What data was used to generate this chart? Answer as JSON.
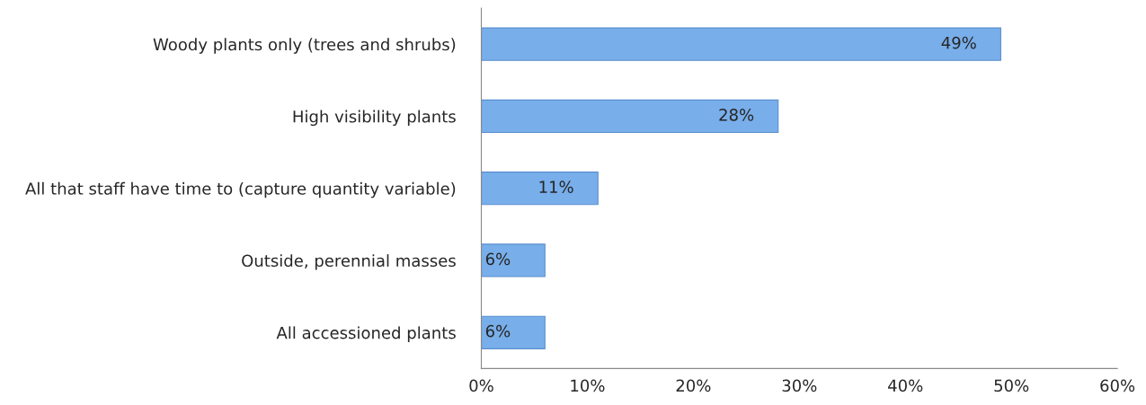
{
  "chart_data": {
    "type": "bar",
    "orientation": "horizontal",
    "categories": [
      "Woody plants only (trees and shrubs)",
      "High visibility plants",
      "All that staff have time to (capture quantity variable)",
      "Outside, perennial masses",
      "All accessioned plants"
    ],
    "values": [
      49,
      28,
      11,
      6,
      6
    ],
    "value_labels": [
      "49%",
      "28%",
      "11%",
      "6%",
      "6%"
    ],
    "color": "#78aeea",
    "xlim": [
      0,
      60
    ],
    "xticks": [
      {
        "value": 0,
        "label": "0%"
      },
      {
        "value": 10,
        "label": "10%"
      },
      {
        "value": 20,
        "label": "20%"
      },
      {
        "value": 30,
        "label": "30%"
      },
      {
        "value": 40,
        "label": "40%"
      },
      {
        "value": 50,
        "label": "50%"
      },
      {
        "value": 60,
        "label": "60%"
      }
    ],
    "grid": false,
    "legend": false
  }
}
